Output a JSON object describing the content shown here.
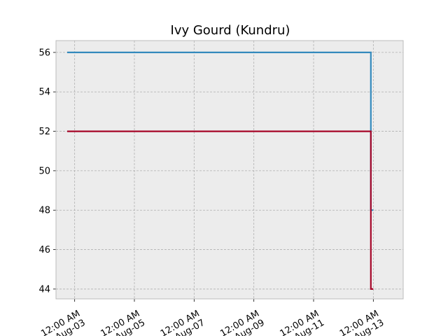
{
  "chart_data": {
    "type": "line",
    "title": "Ivy Gourd (Kundru)",
    "xlabel": "",
    "ylabel": "",
    "x_type": "datetime",
    "xlim": [
      "2025-08-02T09:00:00",
      "2025-08-14T00:00:00"
    ],
    "ylim": [
      43.5,
      56.6
    ],
    "grid": true,
    "legend": "none",
    "background": "#ececec",
    "x_ticks": [
      {
        "value": "2025-08-03T00:00:00",
        "line1": "12:00 AM",
        "line2": "Aug-03"
      },
      {
        "value": "2025-08-05T00:00:00",
        "line1": "12:00 AM",
        "line2": "Aug-05"
      },
      {
        "value": "2025-08-07T00:00:00",
        "line1": "12:00 AM",
        "line2": "Aug-07"
      },
      {
        "value": "2025-08-09T00:00:00",
        "line1": "12:00 AM",
        "line2": "Aug-09"
      },
      {
        "value": "2025-08-11T00:00:00",
        "line1": "12:00 AM",
        "line2": "Aug-11"
      },
      {
        "value": "2025-08-13T00:00:00",
        "line1": "12:00 AM",
        "line2": "Aug-13"
      }
    ],
    "y_ticks": [
      44,
      46,
      48,
      50,
      52,
      54,
      56
    ],
    "series": [
      {
        "color": "#348abd",
        "step": "post",
        "points": [
          {
            "x": "2025-08-02T18:00:00",
            "y": 56
          },
          {
            "x": "2025-08-12T22:00:00",
            "y": 48
          },
          {
            "x": "2025-08-13T00:00:00",
            "y": 48
          }
        ]
      },
      {
        "color": "#a60628",
        "step": "post",
        "points": [
          {
            "x": "2025-08-02T18:00:00",
            "y": 52
          },
          {
            "x": "2025-08-12T22:00:00",
            "y": 44
          },
          {
            "x": "2025-08-13T00:00:00",
            "y": 44
          }
        ]
      }
    ]
  }
}
